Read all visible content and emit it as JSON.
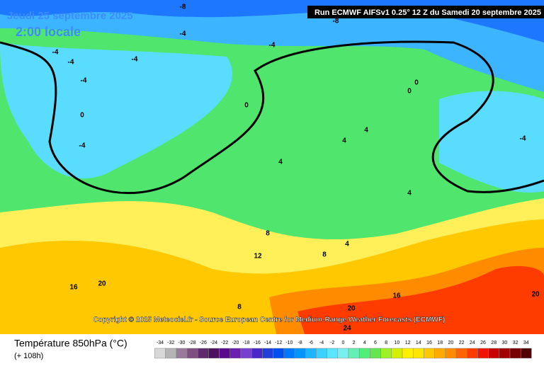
{
  "header": {
    "date": "Jeudi 25 septembre 2025",
    "time": "2:00 locale",
    "run": "Run ECMWF AIFSv1 0.25° 12 Z du Samedi 20 septembre 2025"
  },
  "copyright": "Copyright © 2025 Meteociel.fr - Source European Centre for Medium-Range Weather Forecasts (ECMWF)",
  "footer": {
    "title": "Température 850hPa (°C)",
    "subtitle": "(+ 108h)"
  },
  "contour_labels": [
    -8,
    -8,
    -4,
    -4,
    -4,
    -4,
    -4,
    -4,
    0,
    -4,
    0,
    0,
    0,
    4,
    4,
    4,
    -4,
    4,
    8,
    12,
    8,
    4,
    16,
    20,
    16,
    20,
    24,
    8,
    20
  ],
  "legend": {
    "values": [
      -34,
      -32,
      -30,
      -28,
      -26,
      -24,
      -22,
      -20,
      -18,
      -16,
      -14,
      -12,
      -10,
      -8,
      -6,
      -4,
      -2,
      0,
      2,
      4,
      6,
      8,
      10,
      12,
      14,
      16,
      18,
      20,
      22,
      24,
      26,
      28,
      30,
      32,
      34
    ],
    "colors": [
      "#d8d8d8",
      "#b4b4b4",
      "#9a7a9a",
      "#7f4f82",
      "#5e2a6a",
      "#4b0f60",
      "#5a0a8c",
      "#6a1fb0",
      "#7840d0",
      "#4a28c8",
      "#2040d8",
      "#0050f0",
      "#0078ff",
      "#0096ff",
      "#1eb4ff",
      "#3cd2ff",
      "#5ae6ff",
      "#78f0f0",
      "#64f0b4",
      "#50f078",
      "#64e650",
      "#a0f028",
      "#d2f000",
      "#fff000",
      "#ffe600",
      "#ffc800",
      "#ffaa00",
      "#ff8c00",
      "#ff6400",
      "#ff3c00",
      "#f01400",
      "#c80000",
      "#a00000",
      "#780000",
      "#500000"
    ]
  }
}
